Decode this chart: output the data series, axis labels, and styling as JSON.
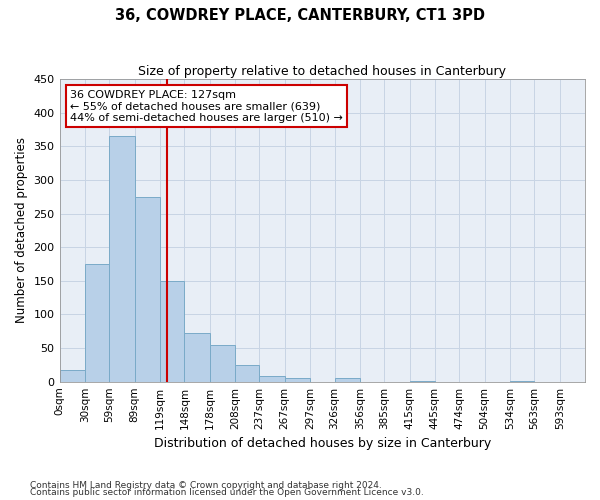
{
  "title": "36, COWDREY PLACE, CANTERBURY, CT1 3PD",
  "subtitle": "Size of property relative to detached houses in Canterbury",
  "xlabel": "Distribution of detached houses by size in Canterbury",
  "ylabel": "Number of detached properties",
  "footnote1": "Contains HM Land Registry data © Crown copyright and database right 2024.",
  "footnote2": "Contains public sector information licensed under the Open Government Licence v3.0.",
  "bin_edges": [
    0,
    30,
    59,
    89,
    119,
    148,
    178,
    208,
    237,
    267,
    297,
    326,
    356,
    385,
    415,
    445,
    474,
    504,
    534,
    563,
    593
  ],
  "bin_labels": [
    "0sqm",
    "30sqm",
    "59sqm",
    "89sqm",
    "119sqm",
    "148sqm",
    "178sqm",
    "208sqm",
    "237sqm",
    "267sqm",
    "297sqm",
    "326sqm",
    "356sqm",
    "385sqm",
    "415sqm",
    "445sqm",
    "474sqm",
    "504sqm",
    "534sqm",
    "563sqm",
    "593sqm"
  ],
  "bar_values": [
    18,
    175,
    365,
    275,
    150,
    72,
    54,
    25,
    9,
    5,
    0,
    6,
    0,
    0,
    1,
    0,
    0,
    0,
    1,
    0
  ],
  "bar_color": "#b8d0e8",
  "bar_edge_color": "#7aaac8",
  "property_size": 127,
  "property_label": "36 COWDREY PLACE: 127sqm",
  "annotation_line1": "← 55% of detached houses are smaller (639)",
  "annotation_line2": "44% of semi-detached houses are larger (510) →",
  "vline_color": "#cc0000",
  "annotation_box_edgecolor": "#cc0000",
  "grid_color": "#c8d4e4",
  "bg_color": "#e8eef6",
  "ylim": [
    0,
    450
  ],
  "yticks": [
    0,
    50,
    100,
    150,
    200,
    250,
    300,
    350,
    400,
    450
  ]
}
